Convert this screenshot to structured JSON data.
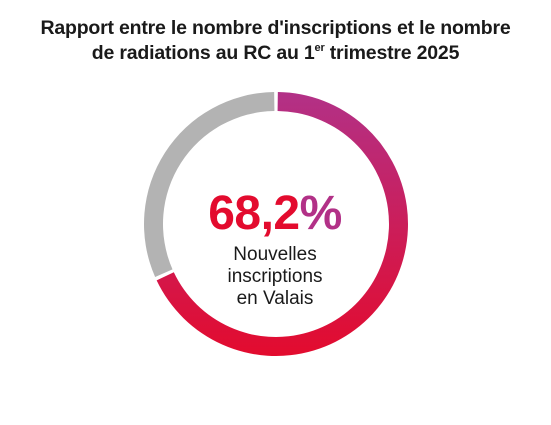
{
  "title": {
    "line1": "Rapport entre le nombre d'inscriptions et le nombre",
    "line2_prefix": "de radiations au RC au 1",
    "line2_sup": "er",
    "line2_suffix": " trimestre 2025"
  },
  "center": {
    "value": "68,2",
    "unit": "%",
    "label_line1": "Nouvelles",
    "label_line2": "inscriptions",
    "label_line3": "en Valais"
  },
  "colors": {
    "gradient_start": "#b23187",
    "gradient_end": "#e30b2e",
    "remainder": "#b3b3b3"
  },
  "chart_data": {
    "type": "pie",
    "variant": "donut",
    "title": "Rapport entre le nombre d'inscriptions et le nombre de radiations au RC au 1er trimestre 2025",
    "slices": [
      {
        "label": "Nouvelles inscriptions en Valais",
        "value": 68.2
      },
      {
        "label": "",
        "value": 31.8
      }
    ],
    "unit": "%",
    "start_angle": "top",
    "direction": "clockwise",
    "legend": "none"
  }
}
